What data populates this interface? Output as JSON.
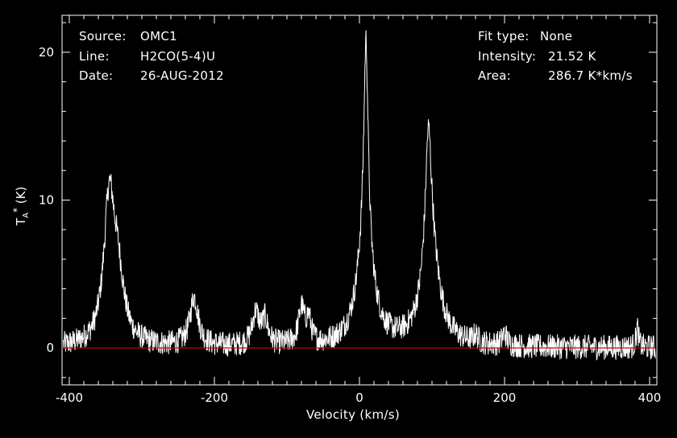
{
  "info_left": [
    {
      "key": "Source:",
      "value": "OMC1"
    },
    {
      "key": "Line:",
      "value": "H2CO(5-4)U"
    },
    {
      "key": "Date:",
      "value": "26-AUG-2012"
    }
  ],
  "info_right": [
    {
      "key": "Fit type:",
      "value": "None"
    },
    {
      "key": "Intensity:",
      "value": "21.52 K"
    },
    {
      "key": "Area:",
      "value": "286.7 K*km/s"
    }
  ],
  "chart_data": {
    "type": "line",
    "xlabel": "Velocity (km/s)",
    "ylabel_main": "T",
    "ylabel_sub": "A",
    "ylabel_sup": "*",
    "ylabel_unit": "(K)",
    "xlim": [
      -410,
      410
    ],
    "ylim": [
      -2.5,
      22.5
    ],
    "xticks": [
      -400,
      -200,
      0,
      200,
      400
    ],
    "yticks": [
      0,
      10,
      20
    ],
    "grid": false,
    "baseline": 0,
    "line_color": "#ffffff",
    "baseline_color": "#cc0000",
    "background": "#000000",
    "peaks": [
      {
        "x": -345,
        "y": 10.2
      },
      {
        "x": -338,
        "y": 7.0
      },
      {
        "x": -228,
        "y": 3.5
      },
      {
        "x": -140,
        "y": 3.0
      },
      {
        "x": -80,
        "y": 3.0
      },
      {
        "x": 9,
        "y": 21.5
      },
      {
        "x": 95,
        "y": 15.9
      },
      {
        "x": 200,
        "y": 1.0
      },
      {
        "x": 383,
        "y": 1.5
      }
    ]
  }
}
